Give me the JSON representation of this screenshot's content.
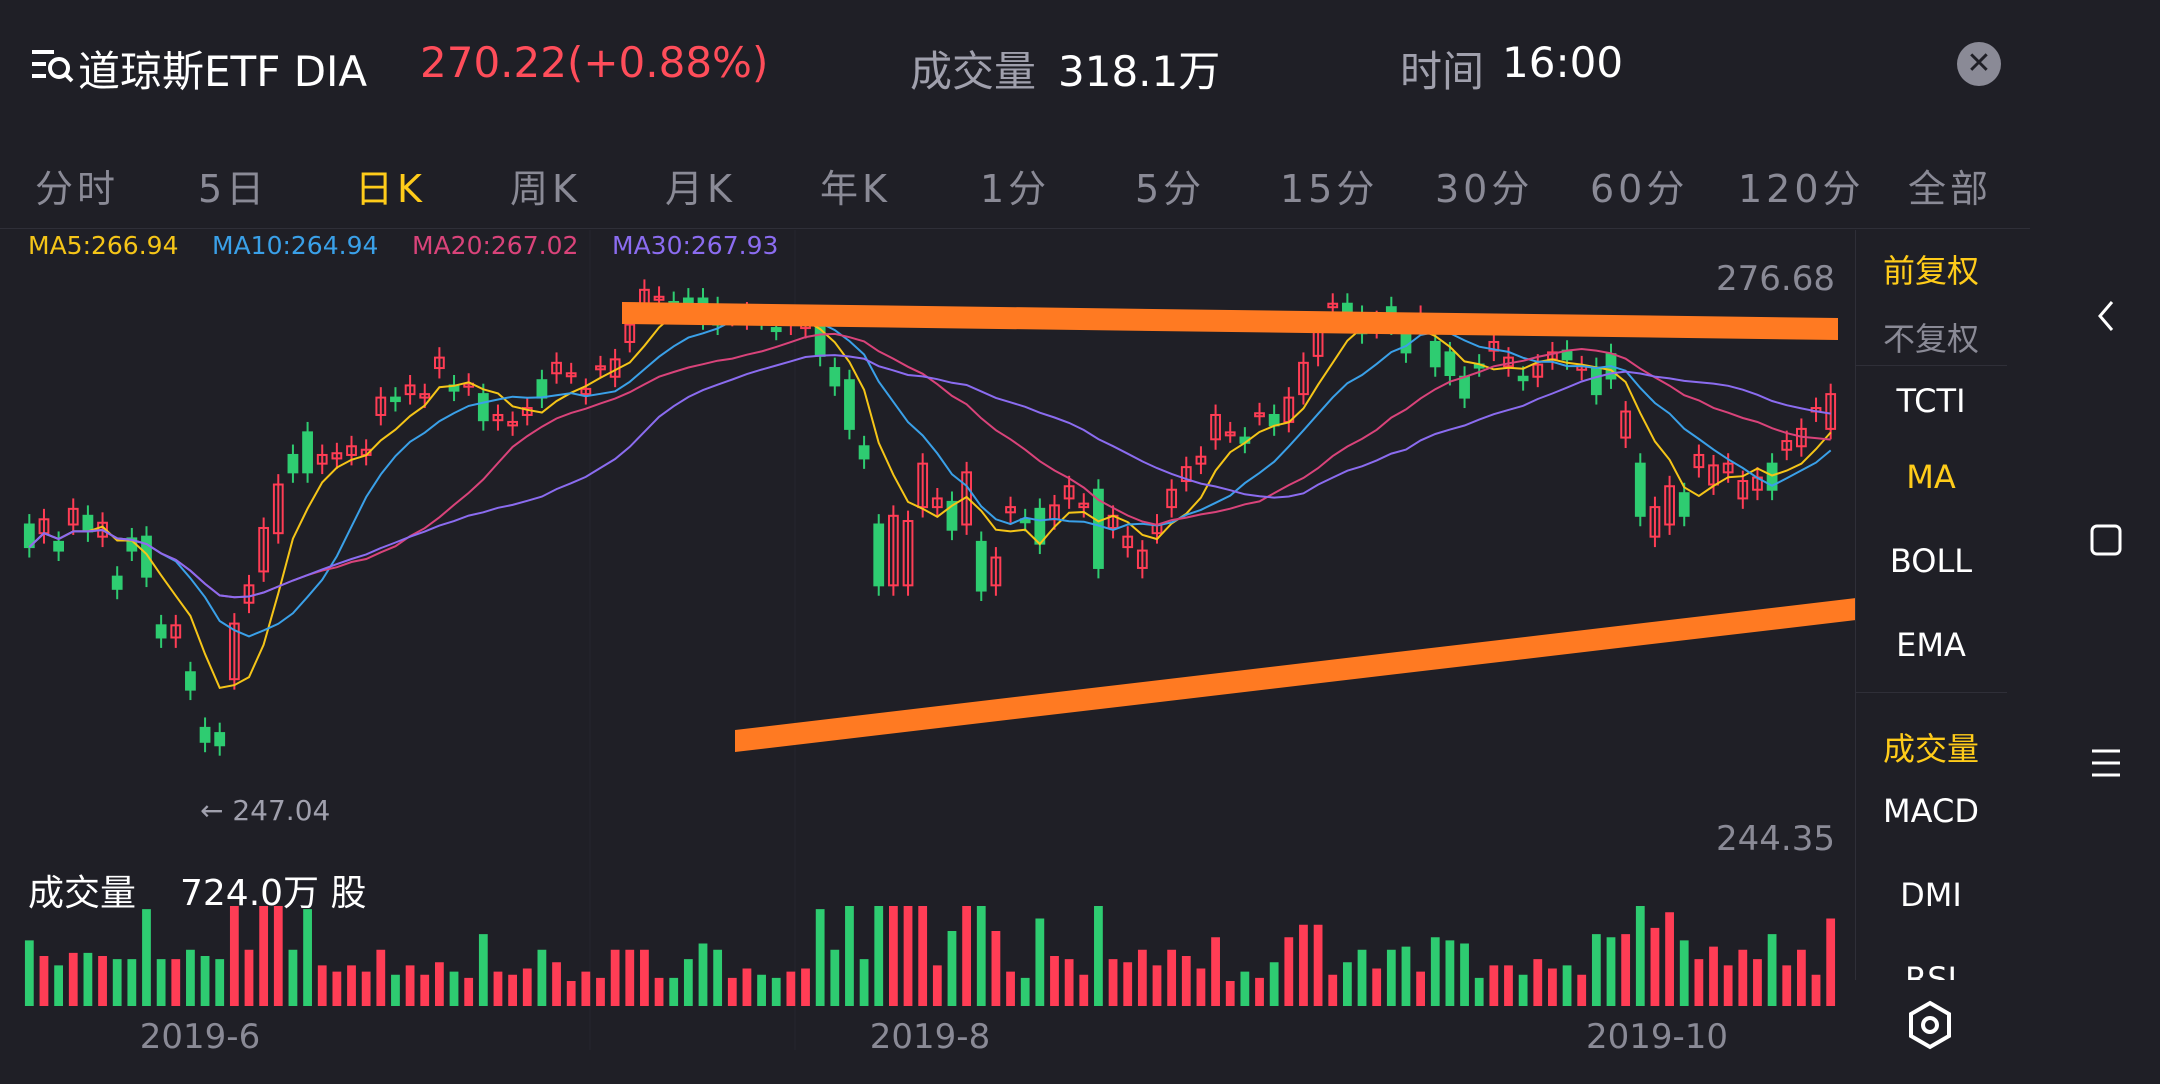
{
  "header": {
    "menu_icon": "list-search-icon",
    "title": "道琼斯ETF  DIA",
    "price": "270.22(+0.88%)",
    "volume_label": "成交量",
    "volume_value": "318.1万",
    "time_label": "时间",
    "time_value": "16:00",
    "close_icon": "close-icon"
  },
  "tabs": [
    "分时",
    "5日",
    "日K",
    "周K",
    "月K",
    "年K",
    "1分",
    "5分",
    "15分",
    "30分",
    "60分",
    "120分",
    "全部"
  ],
  "active_tab": "日K",
  "indicators": {
    "ma5": "MA5:266.94",
    "ma10": "MA10:264.94",
    "ma20": "MA20:267.02",
    "ma30": "MA30:267.93"
  },
  "price_axis": {
    "high": "276.68",
    "low": "244.35",
    "min_marker": "← 247.04"
  },
  "volume": {
    "label": "成交量",
    "value": "724.0万 股"
  },
  "dates": [
    "2019-6",
    "2019-8",
    "2019-10"
  ],
  "side_panel": {
    "items": [
      "前复权",
      "不复权",
      "TCTI",
      "MA",
      "BOLL",
      "EMA",
      "成交量",
      "MACD",
      "DMI",
      "RSI"
    ]
  },
  "colors": {
    "up": "#ff3d55",
    "down": "#2ecc71",
    "ma5": "#f5c518",
    "ma10": "#3aa0e8",
    "ma20": "#d9437a",
    "ma30": "#8b6cf0",
    "trendline": "#ff7a22",
    "accent": "#ffcc1a"
  },
  "chart_data": {
    "type": "candlestick",
    "ylim": [
      244.35,
      276.68
    ],
    "candles": [
      {
        "o": 262.5,
        "c": 261.2
      },
      {
        "o": 262.0,
        "c": 262.8
      },
      {
        "o": 261.5,
        "c": 261.0
      },
      {
        "o": 262.5,
        "c": 263.4
      },
      {
        "o": 263.0,
        "c": 262.1
      },
      {
        "o": 261.8,
        "c": 262.6
      },
      {
        "o": 259.5,
        "c": 258.8
      },
      {
        "o": 261.7,
        "c": 261.0
      },
      {
        "o": 261.8,
        "c": 259.5
      },
      {
        "o": 256.7,
        "c": 256.0
      },
      {
        "o": 256.0,
        "c": 256.7
      },
      {
        "o": 254.0,
        "c": 253.0
      },
      {
        "o": 250.8,
        "c": 250.0
      },
      {
        "o": 250.5,
        "c": 249.8
      },
      {
        "o": 253.6,
        "c": 256.8
      },
      {
        "o": 258.0,
        "c": 259.0
      },
      {
        "o": 259.8,
        "c": 262.3
      },
      {
        "o": 262.0,
        "c": 264.8
      },
      {
        "o": 266.5,
        "c": 265.5
      },
      {
        "o": 267.8,
        "c": 265.5
      },
      {
        "o": 266.0,
        "c": 266.5
      },
      {
        "o": 266.3,
        "c": 266.6
      },
      {
        "o": 266.5,
        "c": 267.0
      },
      {
        "o": 266.5,
        "c": 266.8
      },
      {
        "o": 268.8,
        "c": 269.8
      },
      {
        "o": 269.8,
        "c": 269.6
      },
      {
        "o": 270.0,
        "c": 270.5
      },
      {
        "o": 269.8,
        "c": 270.0
      },
      {
        "o": 271.5,
        "c": 272.1
      },
      {
        "o": 270.5,
        "c": 270.2
      },
      {
        "o": 270.5,
        "c": 270.6
      },
      {
        "o": 270.0,
        "c": 268.5
      },
      {
        "o": 268.5,
        "c": 268.8
      },
      {
        "o": 268.2,
        "c": 268.4
      },
      {
        "o": 268.8,
        "c": 269.2
      },
      {
        "o": 270.8,
        "c": 269.8
      },
      {
        "o": 271.2,
        "c": 271.8
      },
      {
        "o": 271.2,
        "c": 271.2
      },
      {
        "o": 270.0,
        "c": 270.3
      },
      {
        "o": 271.5,
        "c": 271.6
      },
      {
        "o": 271.0,
        "c": 272.0
      },
      {
        "o": 273.0,
        "c": 274.0
      },
      {
        "o": 275.0,
        "c": 276.0
      },
      {
        "o": 275.5,
        "c": 275.6
      },
      {
        "o": 275.3,
        "c": 275.2
      },
      {
        "o": 275.5,
        "c": 274.8
      },
      {
        "o": 275.5,
        "c": 274.3
      },
      {
        "o": 275.0,
        "c": 274.0
      },
      {
        "o": 274.5,
        "c": 274.6
      },
      {
        "o": 274.3,
        "c": 274.7
      },
      {
        "o": 274.5,
        "c": 274.3
      },
      {
        "o": 273.8,
        "c": 273.7
      },
      {
        "o": 274.0,
        "c": 274.3
      },
      {
        "o": 273.8,
        "c": 274.2
      },
      {
        "o": 274.5,
        "c": 272.2
      },
      {
        "o": 271.5,
        "c": 270.5
      },
      {
        "o": 270.8,
        "c": 268.0
      },
      {
        "o": 267.0,
        "c": 266.3
      },
      {
        "o": 262.5,
        "c": 259.0
      },
      {
        "o": 259.0,
        "c": 263.0
      },
      {
        "o": 259.0,
        "c": 262.7
      },
      {
        "o": 263.5,
        "c": 266.0
      },
      {
        "o": 263.5,
        "c": 264.0
      },
      {
        "o": 263.8,
        "c": 262.2
      },
      {
        "o": 262.5,
        "c": 265.5
      },
      {
        "o": 261.5,
        "c": 258.7
      },
      {
        "o": 259.0,
        "c": 260.6
      },
      {
        "o": 263.2,
        "c": 263.5
      },
      {
        "o": 262.8,
        "c": 262.7
      },
      {
        "o": 263.4,
        "c": 261.4
      },
      {
        "o": 262.8,
        "c": 263.6
      },
      {
        "o": 264.0,
        "c": 264.7
      },
      {
        "o": 263.5,
        "c": 263.7
      },
      {
        "o": 264.5,
        "c": 260.0
      },
      {
        "o": 262.3,
        "c": 263.0
      },
      {
        "o": 261.2,
        "c": 261.8
      },
      {
        "o": 260.0,
        "c": 261.0
      },
      {
        "o": 262.0,
        "c": 262.5
      },
      {
        "o": 263.5,
        "c": 264.5
      },
      {
        "o": 265.0,
        "c": 265.8
      },
      {
        "o": 266.0,
        "c": 266.4
      },
      {
        "o": 267.4,
        "c": 268.8
      },
      {
        "o": 267.8,
        "c": 267.8
      },
      {
        "o": 267.5,
        "c": 267.2
      },
      {
        "o": 268.8,
        "c": 268.9
      },
      {
        "o": 268.8,
        "c": 268.2
      },
      {
        "o": 268.4,
        "c": 269.8
      },
      {
        "o": 270.0,
        "c": 271.8
      },
      {
        "o": 272.2,
        "c": 274.0
      },
      {
        "o": 275.0,
        "c": 275.2
      },
      {
        "o": 275.2,
        "c": 274.6
      },
      {
        "o": 274.5,
        "c": 273.5
      },
      {
        "o": 273.8,
        "c": 274.2
      },
      {
        "o": 275.0,
        "c": 274.0
      },
      {
        "o": 273.5,
        "c": 272.4
      },
      {
        "o": 274.2,
        "c": 274.5
      },
      {
        "o": 273.0,
        "c": 271.6
      },
      {
        "o": 272.4,
        "c": 271.1
      },
      {
        "o": 271.0,
        "c": 269.8
      },
      {
        "o": 271.7,
        "c": 271.6
      },
      {
        "o": 272.5,
        "c": 273.0
      },
      {
        "o": 271.6,
        "c": 272.1
      },
      {
        "o": 271.0,
        "c": 270.8
      },
      {
        "o": 271.0,
        "c": 271.7
      },
      {
        "o": 272.0,
        "c": 272.4
      },
      {
        "o": 272.5,
        "c": 272.0
      },
      {
        "o": 271.4,
        "c": 271.6
      },
      {
        "o": 271.5,
        "c": 270.0
      },
      {
        "o": 272.3,
        "c": 270.9
      },
      {
        "o": 267.5,
        "c": 269.0
      },
      {
        "o": 266.0,
        "c": 263.0
      },
      {
        "o": 261.8,
        "c": 263.5
      },
      {
        "o": 262.5,
        "c": 264.7
      },
      {
        "o": 264.3,
        "c": 263.0
      },
      {
        "o": 265.8,
        "c": 266.5
      },
      {
        "o": 264.8,
        "c": 265.9
      },
      {
        "o": 265.5,
        "c": 266.0
      },
      {
        "o": 264.0,
        "c": 265.0
      },
      {
        "o": 264.5,
        "c": 265.2
      },
      {
        "o": 266.0,
        "c": 264.5
      },
      {
        "o": 266.8,
        "c": 267.3
      },
      {
        "o": 267.0,
        "c": 268.0
      },
      {
        "o": 269.0,
        "c": 269.2
      },
      {
        "o": 268.0,
        "c": 270.0
      }
    ]
  }
}
